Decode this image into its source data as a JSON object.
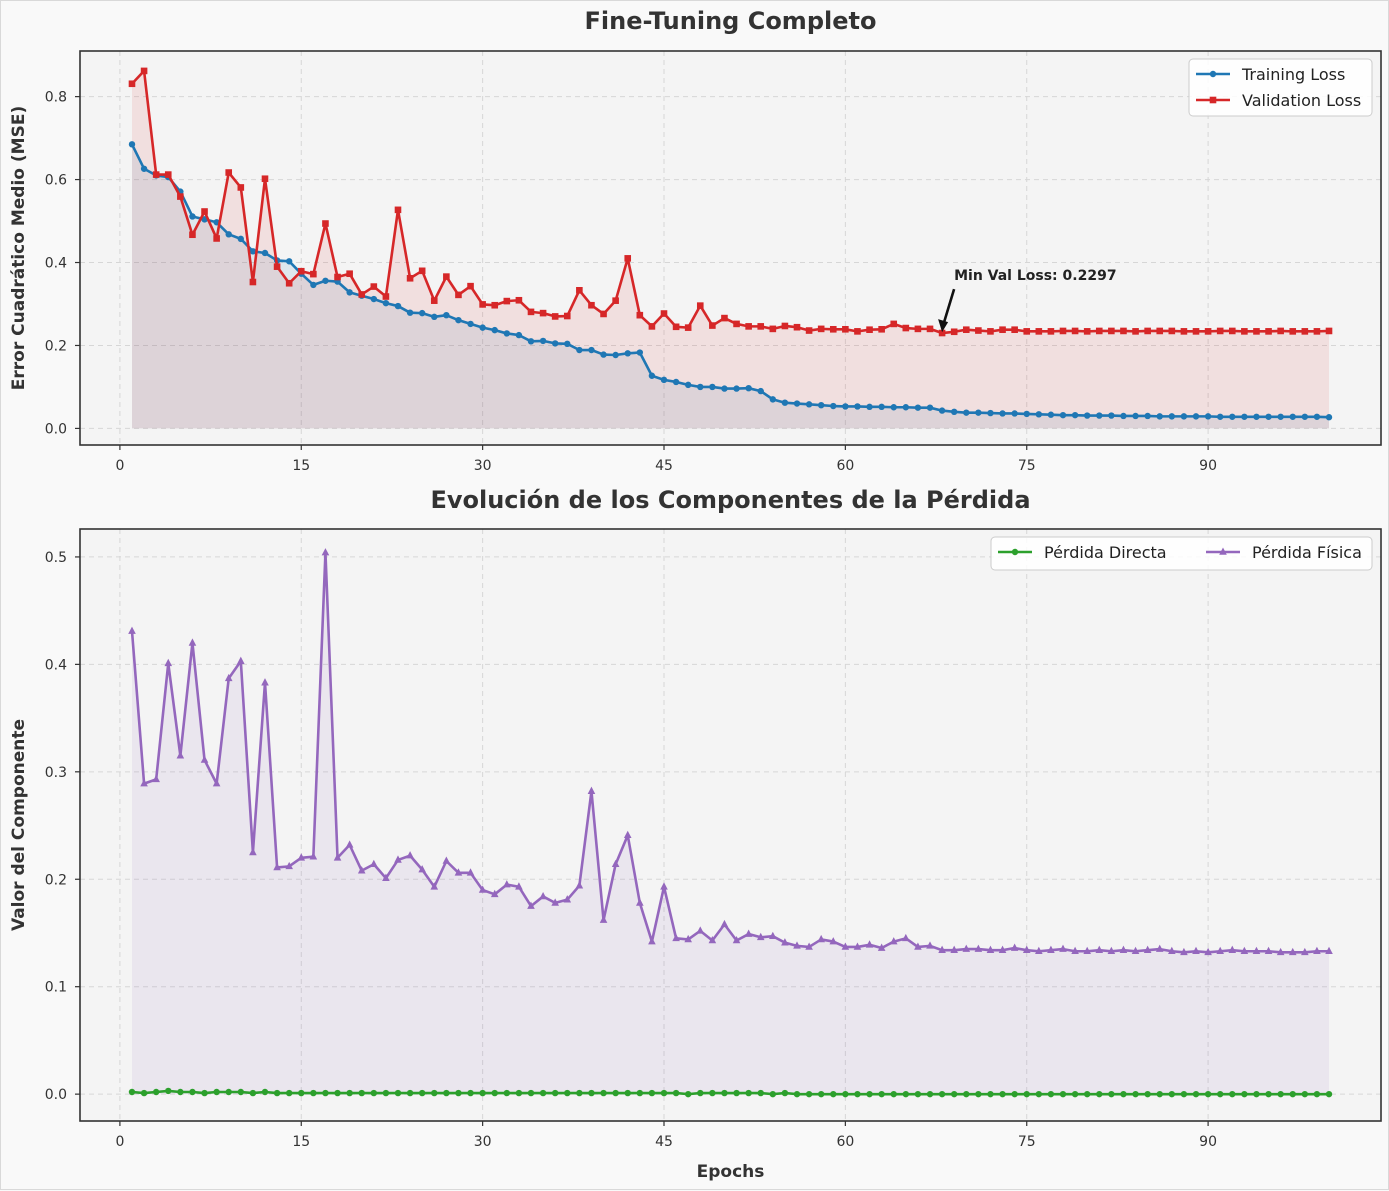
{
  "chart_data": [
    {
      "type": "line",
      "title": "Fine-Tuning Completo",
      "xlabel": "",
      "ylabel": "Error Cuadrático Medio (MSE)",
      "xlim": [
        -3.3,
        104.3
      ],
      "ylim": [
        -0.04,
        0.91
      ],
      "xticks": [
        0,
        15,
        30,
        45,
        60,
        75,
        90
      ],
      "yticks": [
        0.0,
        0.2,
        0.4,
        0.6,
        0.8
      ],
      "grid": true,
      "legend_position": "top-right",
      "x_start": 1,
      "series": [
        {
          "name": "Training Loss",
          "color": "#1f77b4",
          "marker": "circle",
          "fill": true,
          "values": [
            0.685,
            0.626,
            0.61,
            0.606,
            0.571,
            0.511,
            0.504,
            0.497,
            0.468,
            0.457,
            0.427,
            0.423,
            0.405,
            0.403,
            0.373,
            0.346,
            0.356,
            0.354,
            0.328,
            0.32,
            0.312,
            0.302,
            0.295,
            0.279,
            0.278,
            0.269,
            0.273,
            0.261,
            0.252,
            0.243,
            0.237,
            0.229,
            0.225,
            0.21,
            0.211,
            0.205,
            0.204,
            0.189,
            0.189,
            0.178,
            0.177,
            0.181,
            0.183,
            0.127,
            0.117,
            0.112,
            0.105,
            0.1,
            0.1,
            0.096,
            0.096,
            0.097,
            0.09,
            0.07,
            0.062,
            0.06,
            0.058,
            0.056,
            0.054,
            0.053,
            0.053,
            0.052,
            0.052,
            0.051,
            0.051,
            0.05,
            0.05,
            0.043,
            0.04,
            0.038,
            0.038,
            0.037,
            0.036,
            0.036,
            0.035,
            0.034,
            0.033,
            0.032,
            0.032,
            0.031,
            0.031,
            0.031,
            0.03,
            0.03,
            0.03,
            0.029,
            0.029,
            0.029,
            0.029,
            0.029,
            0.028,
            0.028,
            0.028,
            0.028,
            0.028,
            0.028,
            0.028,
            0.028,
            0.028,
            0.027
          ]
        },
        {
          "name": "Validation Loss",
          "color": "#d62728",
          "marker": "square",
          "fill": true,
          "values": [
            0.831,
            0.862,
            0.612,
            0.612,
            0.559,
            0.467,
            0.523,
            0.458,
            0.617,
            0.581,
            0.353,
            0.602,
            0.39,
            0.35,
            0.379,
            0.372,
            0.494,
            0.365,
            0.373,
            0.323,
            0.342,
            0.318,
            0.527,
            0.362,
            0.38,
            0.308,
            0.366,
            0.322,
            0.343,
            0.299,
            0.297,
            0.307,
            0.309,
            0.281,
            0.278,
            0.27,
            0.271,
            0.333,
            0.297,
            0.276,
            0.308,
            0.41,
            0.273,
            0.246,
            0.277,
            0.245,
            0.243,
            0.296,
            0.248,
            0.266,
            0.252,
            0.246,
            0.246,
            0.24,
            0.247,
            0.244,
            0.236,
            0.24,
            0.239,
            0.239,
            0.234,
            0.238,
            0.239,
            0.252,
            0.242,
            0.24,
            0.24,
            0.23,
            0.233,
            0.238,
            0.236,
            0.234,
            0.238,
            0.238,
            0.234,
            0.234,
            0.234,
            0.235,
            0.235,
            0.234,
            0.235,
            0.235,
            0.235,
            0.234,
            0.235,
            0.235,
            0.235,
            0.234,
            0.234,
            0.234,
            0.235,
            0.235,
            0.234,
            0.234,
            0.234,
            0.235,
            0.234,
            0.234,
            0.234,
            0.235
          ]
        }
      ],
      "annotation": {
        "text": "Min Val Loss: 0.2297",
        "x": 68,
        "y": 0.2297
      }
    },
    {
      "type": "line",
      "title": "Evolución de los Componentes de la Pérdida",
      "xlabel": "Epochs",
      "ylabel": "Valor del Componente",
      "xlim": [
        -3.3,
        104.3
      ],
      "ylim": [
        -0.025,
        0.526
      ],
      "xticks": [
        0,
        15,
        30,
        45,
        60,
        75,
        90
      ],
      "yticks": [
        0.0,
        0.1,
        0.2,
        0.3,
        0.4,
        0.5
      ],
      "grid": true,
      "legend_position": "top-right",
      "x_start": 1,
      "series": [
        {
          "name": "Pérdida Directa",
          "color": "#2ca02c",
          "marker": "circle",
          "fill": false,
          "values": [
            0.002,
            0.001,
            0.002,
            0.003,
            0.002,
            0.002,
            0.001,
            0.002,
            0.002,
            0.002,
            0.001,
            0.002,
            0.001,
            0.001,
            0.001,
            0.001,
            0.001,
            0.001,
            0.001,
            0.001,
            0.001,
            0.001,
            0.001,
            0.001,
            0.001,
            0.001,
            0.001,
            0.001,
            0.001,
            0.001,
            0.001,
            0.001,
            0.001,
            0.001,
            0.001,
            0.001,
            0.001,
            0.001,
            0.001,
            0.001,
            0.001,
            0.001,
            0.001,
            0.001,
            0.001,
            0.001,
            0.0,
            0.001,
            0.001,
            0.001,
            0.001,
            0.001,
            0.001,
            0.0,
            0.001,
            0.0,
            0.0,
            0.0,
            0.0,
            0.0,
            0.0,
            0.0,
            0.0,
            0.0,
            0.0,
            0.0,
            0.0,
            0.0,
            0.0,
            0.0,
            0.0,
            0.0,
            0.0,
            0.0,
            0.0,
            0.0,
            0.0,
            0.0,
            0.0,
            0.0,
            0.0,
            0.0,
            0.0,
            0.0,
            0.0,
            0.0,
            0.0,
            0.0,
            0.0,
            0.0,
            0.0,
            0.0,
            0.0,
            0.0,
            0.0,
            0.0,
            0.0,
            0.0,
            0.0,
            0.0
          ]
        },
        {
          "name": "Pérdida Física",
          "color": "#9467bd",
          "marker": "triangle",
          "fill": true,
          "values": [
            0.431,
            0.289,
            0.293,
            0.401,
            0.315,
            0.42,
            0.311,
            0.289,
            0.387,
            0.403,
            0.225,
            0.383,
            0.211,
            0.212,
            0.22,
            0.221,
            0.504,
            0.22,
            0.232,
            0.208,
            0.214,
            0.201,
            0.218,
            0.222,
            0.209,
            0.193,
            0.217,
            0.206,
            0.206,
            0.19,
            0.186,
            0.195,
            0.193,
            0.175,
            0.184,
            0.178,
            0.181,
            0.194,
            0.282,
            0.162,
            0.214,
            0.241,
            0.178,
            0.142,
            0.193,
            0.145,
            0.144,
            0.152,
            0.143,
            0.158,
            0.143,
            0.149,
            0.146,
            0.147,
            0.141,
            0.138,
            0.137,
            0.144,
            0.142,
            0.137,
            0.137,
            0.139,
            0.136,
            0.142,
            0.145,
            0.137,
            0.138,
            0.134,
            0.134,
            0.135,
            0.135,
            0.134,
            0.134,
            0.136,
            0.134,
            0.133,
            0.134,
            0.135,
            0.133,
            0.133,
            0.134,
            0.133,
            0.134,
            0.133,
            0.134,
            0.135,
            0.133,
            0.132,
            0.133,
            0.132,
            0.133,
            0.134,
            0.133,
            0.133,
            0.133,
            0.132,
            0.132,
            0.132,
            0.133,
            0.133
          ]
        }
      ]
    }
  ]
}
